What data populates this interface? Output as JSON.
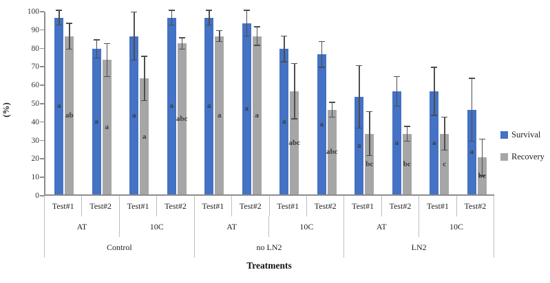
{
  "chart_data": {
    "type": "bar",
    "title": "",
    "xlabel": "Treatments",
    "ylabel": "(%)",
    "ylim": [
      0,
      100
    ],
    "yticks": [
      0,
      10,
      20,
      30,
      40,
      50,
      60,
      70,
      80,
      90,
      100
    ],
    "grid": false,
    "legend_position": "right",
    "legend": [
      "Survival",
      "Recovery"
    ],
    "colors": {
      "survival": "#4472C4",
      "recovery": "#A6A6A6",
      "error_bar": "#4d4d4d"
    },
    "categories": [
      {
        "group": "Control",
        "temp": "AT",
        "test": "Test#1",
        "survival": {
          "value": 96,
          "err": 4,
          "letter": "a"
        },
        "recovery": {
          "value": 86,
          "err": 7,
          "letter": "ab"
        }
      },
      {
        "group": "Control",
        "temp": "AT",
        "test": "Test#2",
        "survival": {
          "value": 79,
          "err": 5,
          "letter": "a"
        },
        "recovery": {
          "value": 73,
          "err": 9,
          "letter": "a"
        }
      },
      {
        "group": "Control",
        "temp": "10C",
        "test": "Test#1",
        "survival": {
          "value": 86,
          "err": 13,
          "letter": "a"
        },
        "recovery": {
          "value": 63,
          "err": 12,
          "letter": "a"
        }
      },
      {
        "group": "Control",
        "temp": "10C",
        "test": "Test#2",
        "survival": {
          "value": 96,
          "err": 4,
          "letter": "a"
        },
        "recovery": {
          "value": 82,
          "err": 3,
          "letter": "abc"
        }
      },
      {
        "group": "no LN2",
        "temp": "AT",
        "test": "Test#1",
        "survival": {
          "value": 96,
          "err": 4,
          "letter": "a"
        },
        "recovery": {
          "value": 86,
          "err": 3,
          "letter": "a"
        }
      },
      {
        "group": "no LN2",
        "temp": "AT",
        "test": "Test#2",
        "survival": {
          "value": 93,
          "err": 7,
          "letter": "a"
        },
        "recovery": {
          "value": 86,
          "err": 5,
          "letter": "a"
        }
      },
      {
        "group": "no LN2",
        "temp": "10C",
        "test": "Test#1",
        "survival": {
          "value": 79,
          "err": 7,
          "letter": "a"
        },
        "recovery": {
          "value": 56,
          "err": 15,
          "letter": "abc"
        }
      },
      {
        "group": "no LN2",
        "temp": "10C",
        "test": "Test#2",
        "survival": {
          "value": 76,
          "err": 7,
          "letter": "a"
        },
        "recovery": {
          "value": 46,
          "err": 4,
          "letter": "abc"
        }
      },
      {
        "group": "LN2",
        "temp": "AT",
        "test": "Test#1",
        "survival": {
          "value": 53,
          "err": 17,
          "letter": "a"
        },
        "recovery": {
          "value": 33,
          "err": 12,
          "letter": "bc"
        }
      },
      {
        "group": "LN2",
        "temp": "AT",
        "test": "Test#2",
        "survival": {
          "value": 56,
          "err": 8,
          "letter": "a"
        },
        "recovery": {
          "value": 33,
          "err": 4,
          "letter": "bc"
        }
      },
      {
        "group": "LN2",
        "temp": "10C",
        "test": "Test#1",
        "survival": {
          "value": 56,
          "err": 13,
          "letter": "a"
        },
        "recovery": {
          "value": 33,
          "err": 9,
          "letter": "c"
        }
      },
      {
        "group": "LN2",
        "temp": "10C",
        "test": "Test#2",
        "survival": {
          "value": 46,
          "err": 17,
          "letter": "a"
        },
        "recovery": {
          "value": 20,
          "err": 10,
          "letter": "bc"
        }
      }
    ],
    "axis_rows": [
      {
        "cells": [
          {
            "label": "Test#1",
            "span": 1
          },
          {
            "label": "Test#2",
            "span": 1
          },
          {
            "label": "Test#1",
            "span": 1
          },
          {
            "label": "Test#2",
            "span": 1
          },
          {
            "label": "Test#1",
            "span": 1
          },
          {
            "label": "Test#2",
            "span": 1
          },
          {
            "label": "Test#1",
            "span": 1
          },
          {
            "label": "Test#2",
            "span": 1
          },
          {
            "label": "Test#1",
            "span": 1
          },
          {
            "label": "Test#2",
            "span": 1
          },
          {
            "label": "Test#1",
            "span": 1
          },
          {
            "label": "Test#2",
            "span": 1
          }
        ]
      },
      {
        "cells": [
          {
            "label": "AT",
            "span": 2
          },
          {
            "label": "10C",
            "span": 2
          },
          {
            "label": "AT",
            "span": 2
          },
          {
            "label": "10C",
            "span": 2
          },
          {
            "label": "AT",
            "span": 2
          },
          {
            "label": "10C",
            "span": 2
          }
        ]
      },
      {
        "cells": [
          {
            "label": "Control",
            "span": 4
          },
          {
            "label": "no LN2",
            "span": 4
          },
          {
            "label": "LN2",
            "span": 4
          }
        ]
      }
    ]
  }
}
